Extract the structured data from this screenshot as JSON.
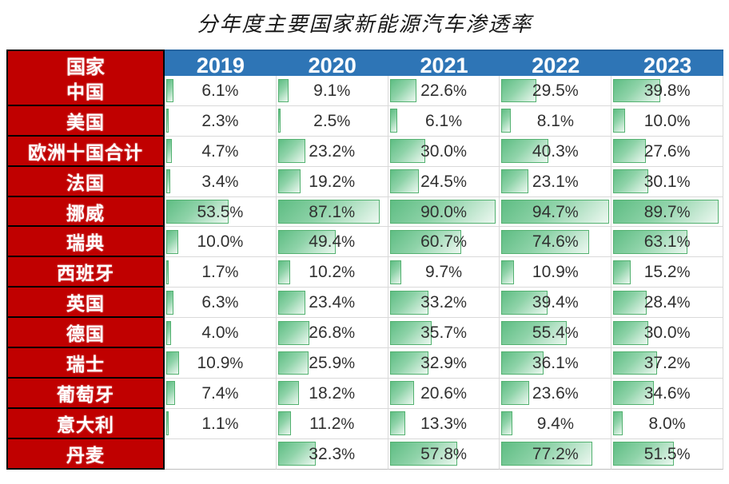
{
  "title": "分年度主要国家新能源汽车渗透率",
  "colors": {
    "country_column_bg": "#C00000",
    "country_column_border": "#000000",
    "year_header_bg": "#2E75B6",
    "header_text": "#FFFFFF",
    "bar_border": "#53B170",
    "bar_fill_start": "#5EBD83",
    "bar_fill_end": "#EDF8F1",
    "grid_line": "#D9D9D9",
    "value_text": "#303030"
  },
  "table": {
    "country_header": "国家",
    "years": [
      "2019",
      "2020",
      "2021",
      "2022",
      "2023"
    ]
  },
  "chart_data": {
    "type": "table",
    "title": "分年度主要国家新能源汽车渗透率",
    "columns": [
      "国家",
      "2019",
      "2020",
      "2021",
      "2022",
      "2023"
    ],
    "unit": "%",
    "bar_scale_max": 94.7,
    "bar_scale_min": 0,
    "series": [
      {
        "name": "中国",
        "values": [
          6.1,
          9.1,
          22.6,
          29.5,
          39.8
        ]
      },
      {
        "name": "美国",
        "values": [
          2.3,
          2.5,
          6.1,
          8.1,
          10.0
        ]
      },
      {
        "name": "欧洲十国合计",
        "values": [
          4.7,
          23.2,
          30.0,
          40.3,
          27.6
        ]
      },
      {
        "name": "法国",
        "values": [
          3.4,
          19.2,
          24.5,
          23.1,
          30.1
        ]
      },
      {
        "name": "挪威",
        "values": [
          53.5,
          87.1,
          90.0,
          94.7,
          89.7
        ]
      },
      {
        "name": "瑞典",
        "values": [
          10.0,
          49.4,
          60.7,
          74.6,
          63.1
        ]
      },
      {
        "name": "西班牙",
        "values": [
          1.7,
          10.2,
          9.7,
          10.9,
          15.2
        ]
      },
      {
        "name": "英国",
        "values": [
          6.3,
          23.4,
          33.2,
          39.4,
          28.4
        ]
      },
      {
        "name": "德国",
        "values": [
          4.0,
          26.8,
          35.7,
          55.4,
          30.0
        ]
      },
      {
        "name": "瑞士",
        "values": [
          10.9,
          25.9,
          32.9,
          36.1,
          37.2
        ]
      },
      {
        "name": "葡萄牙",
        "values": [
          7.4,
          18.2,
          20.6,
          23.6,
          34.6
        ]
      },
      {
        "name": "意大利",
        "values": [
          1.1,
          11.2,
          13.3,
          9.4,
          8.0
        ]
      },
      {
        "name": "丹麦",
        "values": [
          null,
          32.3,
          57.8,
          77.2,
          51.5
        ]
      }
    ]
  }
}
